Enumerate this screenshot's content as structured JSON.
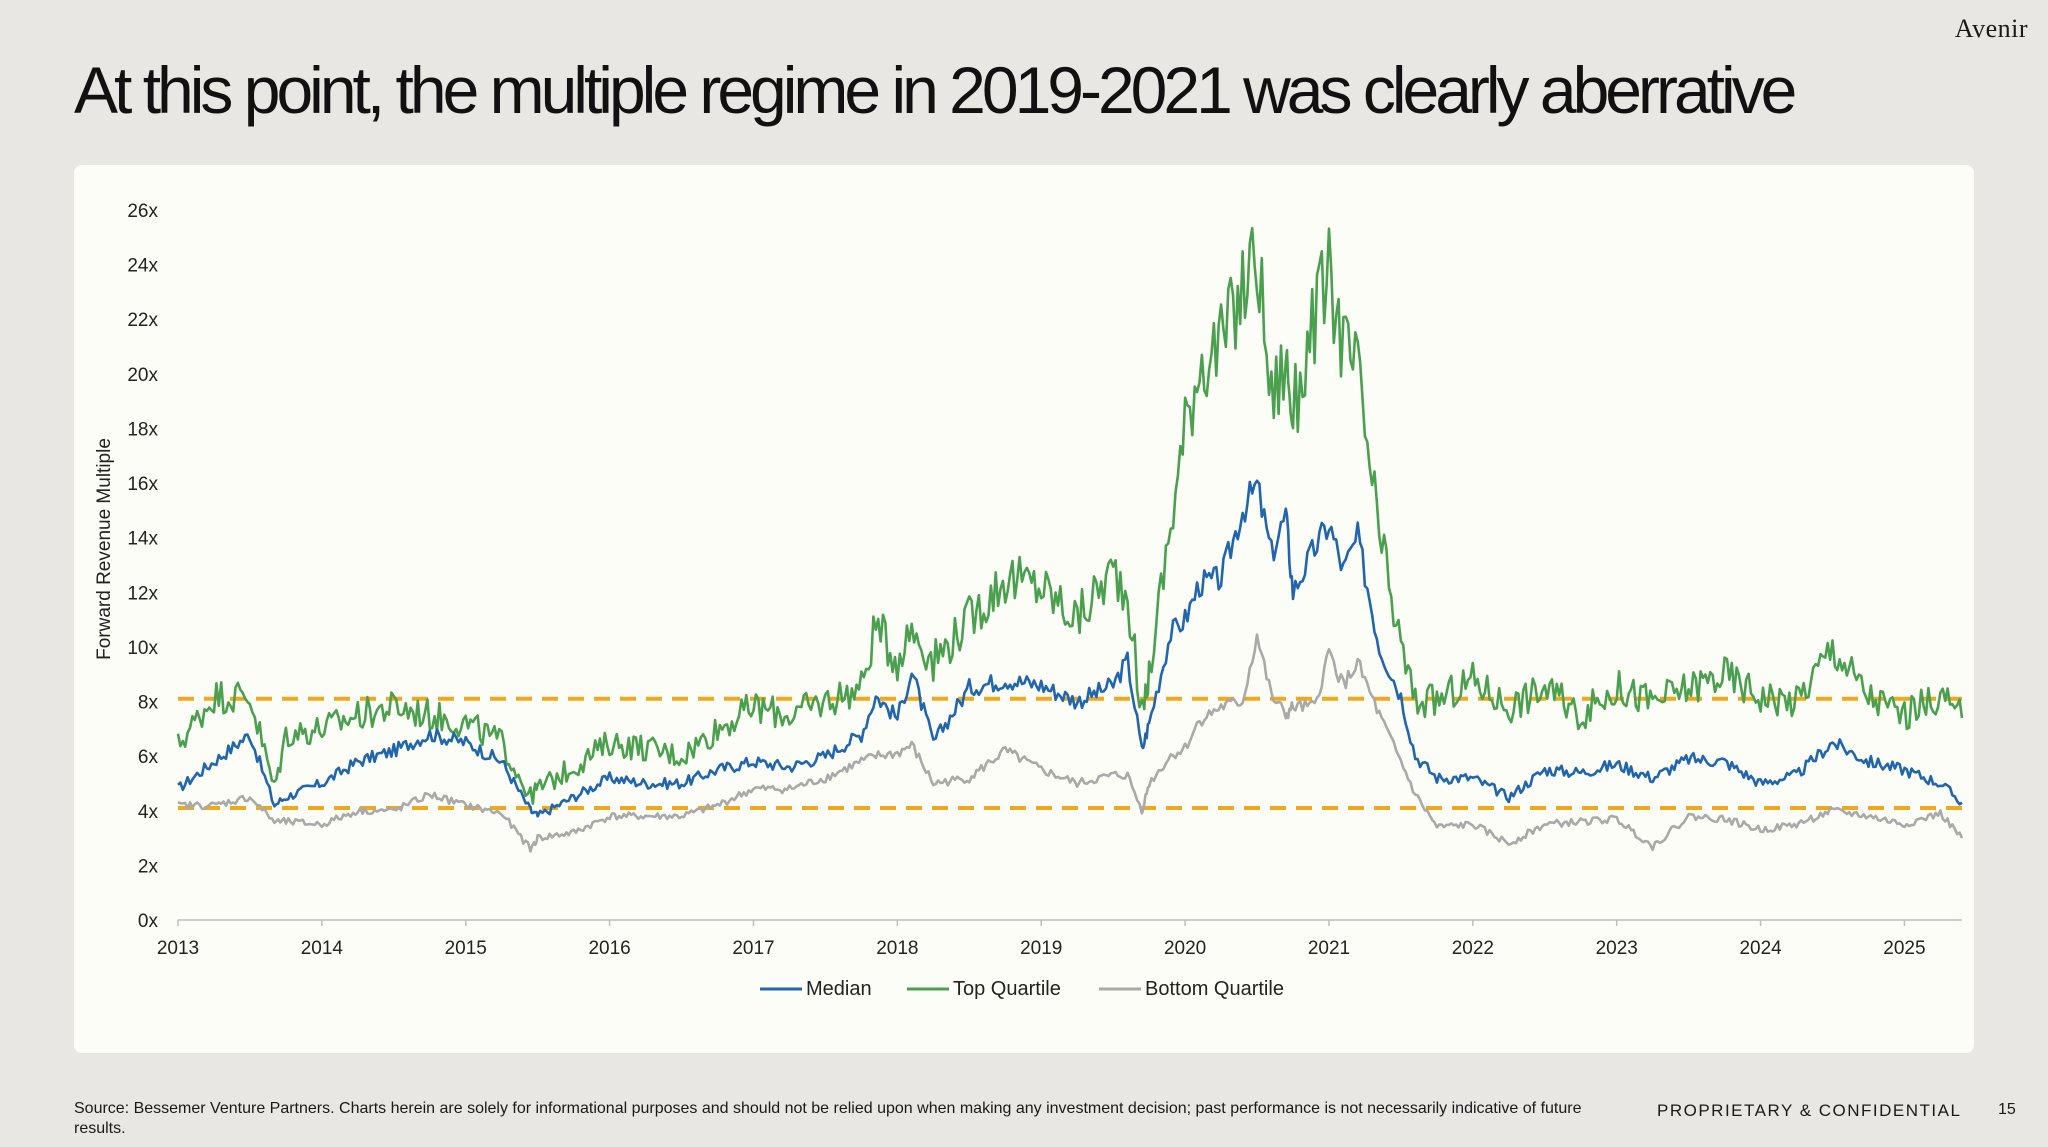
{
  "brand": "Avenir",
  "title": "At this point, the multiple regime in 2019-2021 was clearly aberrative",
  "footer": {
    "source": "Source: Bessemer Venture Partners. Charts herein are solely for informational purposes and should not be relied upon when making any investment decision; past performance is not necessarily indicative of future results.",
    "confidential": "PROPRIETARY & CONFIDENTIAL",
    "page": "15"
  },
  "chart_data": {
    "type": "line",
    "title": "",
    "xlabel": "",
    "ylabel": "Forward Revenue Multiple",
    "xlim": [
      2013,
      2025.4
    ],
    "ylim": [
      0,
      26
    ],
    "x_ticks": [
      "2013",
      "2014",
      "2015",
      "2016",
      "2017",
      "2018",
      "2019",
      "2020",
      "2021",
      "2022",
      "2023",
      "2024",
      "2025"
    ],
    "y_ticks": [
      "0x",
      "2x",
      "4x",
      "6x",
      "8x",
      "10x",
      "12x",
      "14x",
      "16x",
      "18x",
      "20x",
      "22x",
      "24x",
      "26x"
    ],
    "grid": false,
    "legend": "bottom-center",
    "reference_lines": [
      {
        "y": 8.1,
        "color": "#f0a81c",
        "style": "dashed"
      },
      {
        "y": 4.1,
        "color": "#f0a81c",
        "style": "dashed"
      }
    ],
    "x": [
      2013.0,
      2013.25,
      2013.5,
      2013.67,
      2013.75,
      2014.0,
      2014.25,
      2014.5,
      2014.75,
      2015.0,
      2015.25,
      2015.45,
      2015.5,
      2015.75,
      2016.0,
      2016.25,
      2016.5,
      2016.75,
      2017.0,
      2017.25,
      2017.5,
      2017.75,
      2017.85,
      2018.0,
      2018.1,
      2018.25,
      2018.5,
      2018.75,
      2019.0,
      2019.25,
      2019.5,
      2019.6,
      2019.7,
      2019.75,
      2019.9,
      2020.0,
      2020.1,
      2020.25,
      2020.4,
      2020.5,
      2020.6,
      2020.7,
      2020.75,
      2020.9,
      2021.0,
      2021.1,
      2021.2,
      2021.35,
      2021.5,
      2021.6,
      2021.75,
      2022.0,
      2022.25,
      2022.5,
      2022.75,
      2023.0,
      2023.25,
      2023.5,
      2023.75,
      2024.0,
      2024.25,
      2024.5,
      2024.75,
      2025.0,
      2025.25,
      2025.4
    ],
    "series": [
      {
        "name": "Median",
        "color": "#2166ac",
        "values": [
          4.8,
          5.8,
          6.8,
          4.2,
          4.5,
          5.0,
          5.8,
          6.2,
          6.8,
          6.5,
          5.8,
          4.0,
          3.8,
          4.5,
          5.2,
          5.0,
          5.0,
          5.5,
          5.8,
          5.6,
          6.0,
          6.8,
          8.2,
          7.4,
          9.1,
          6.5,
          8.5,
          8.8,
          8.6,
          8.0,
          8.6,
          9.5,
          6.2,
          7.2,
          10.5,
          11.0,
          12.3,
          12.5,
          15.0,
          15.9,
          13.4,
          14.8,
          12.0,
          13.6,
          14.5,
          12.8,
          14.0,
          10.0,
          8.2,
          6.0,
          5.2,
          5.2,
          4.5,
          5.5,
          5.4,
          5.7,
          5.2,
          5.9,
          5.8,
          5.0,
          5.3,
          6.5,
          5.8,
          5.5,
          5.0,
          4.3
        ]
      },
      {
        "name": "Top Quartile",
        "color": "#4aa04f",
        "values": [
          6.4,
          8.2,
          8.2,
          4.8,
          6.8,
          7.0,
          7.5,
          7.8,
          7.5,
          7.2,
          6.5,
          4.5,
          4.8,
          5.6,
          6.5,
          6.3,
          6.0,
          7.0,
          7.8,
          7.5,
          8.0,
          8.5,
          10.8,
          9.5,
          10.7,
          9.5,
          11.0,
          12.5,
          12.2,
          11.0,
          12.8,
          12.0,
          7.5,
          9.0,
          14.5,
          18.0,
          20.5,
          21.0,
          23.0,
          24.5,
          19.0,
          20.5,
          18.5,
          22.0,
          23.5,
          21.0,
          20.0,
          14.0,
          10.0,
          8.0,
          8.0,
          8.8,
          7.8,
          8.5,
          7.5,
          8.5,
          8.0,
          8.5,
          9.0,
          8.2,
          8.0,
          10.0,
          8.2,
          7.5,
          8.2,
          7.4
        ]
      },
      {
        "name": "Bottom Quartile",
        "color": "#a9a9a9",
        "values": [
          4.2,
          4.2,
          4.5,
          3.6,
          3.6,
          3.5,
          4.0,
          4.0,
          4.6,
          4.2,
          3.9,
          2.6,
          3.0,
          3.2,
          3.8,
          3.8,
          3.8,
          4.2,
          4.8,
          4.8,
          5.2,
          5.8,
          6.0,
          6.1,
          6.4,
          5.0,
          5.2,
          6.2,
          5.5,
          5.0,
          5.3,
          5.3,
          4.0,
          5.0,
          6.0,
          6.3,
          7.3,
          7.8,
          8.0,
          10.4,
          8.2,
          7.5,
          7.8,
          7.8,
          9.8,
          8.6,
          9.4,
          7.5,
          5.8,
          4.6,
          3.4,
          3.5,
          2.8,
          3.5,
          3.6,
          3.7,
          2.7,
          3.8,
          3.7,
          3.3,
          3.5,
          4.0,
          3.8,
          3.5,
          3.9,
          3.0
        ]
      }
    ]
  }
}
